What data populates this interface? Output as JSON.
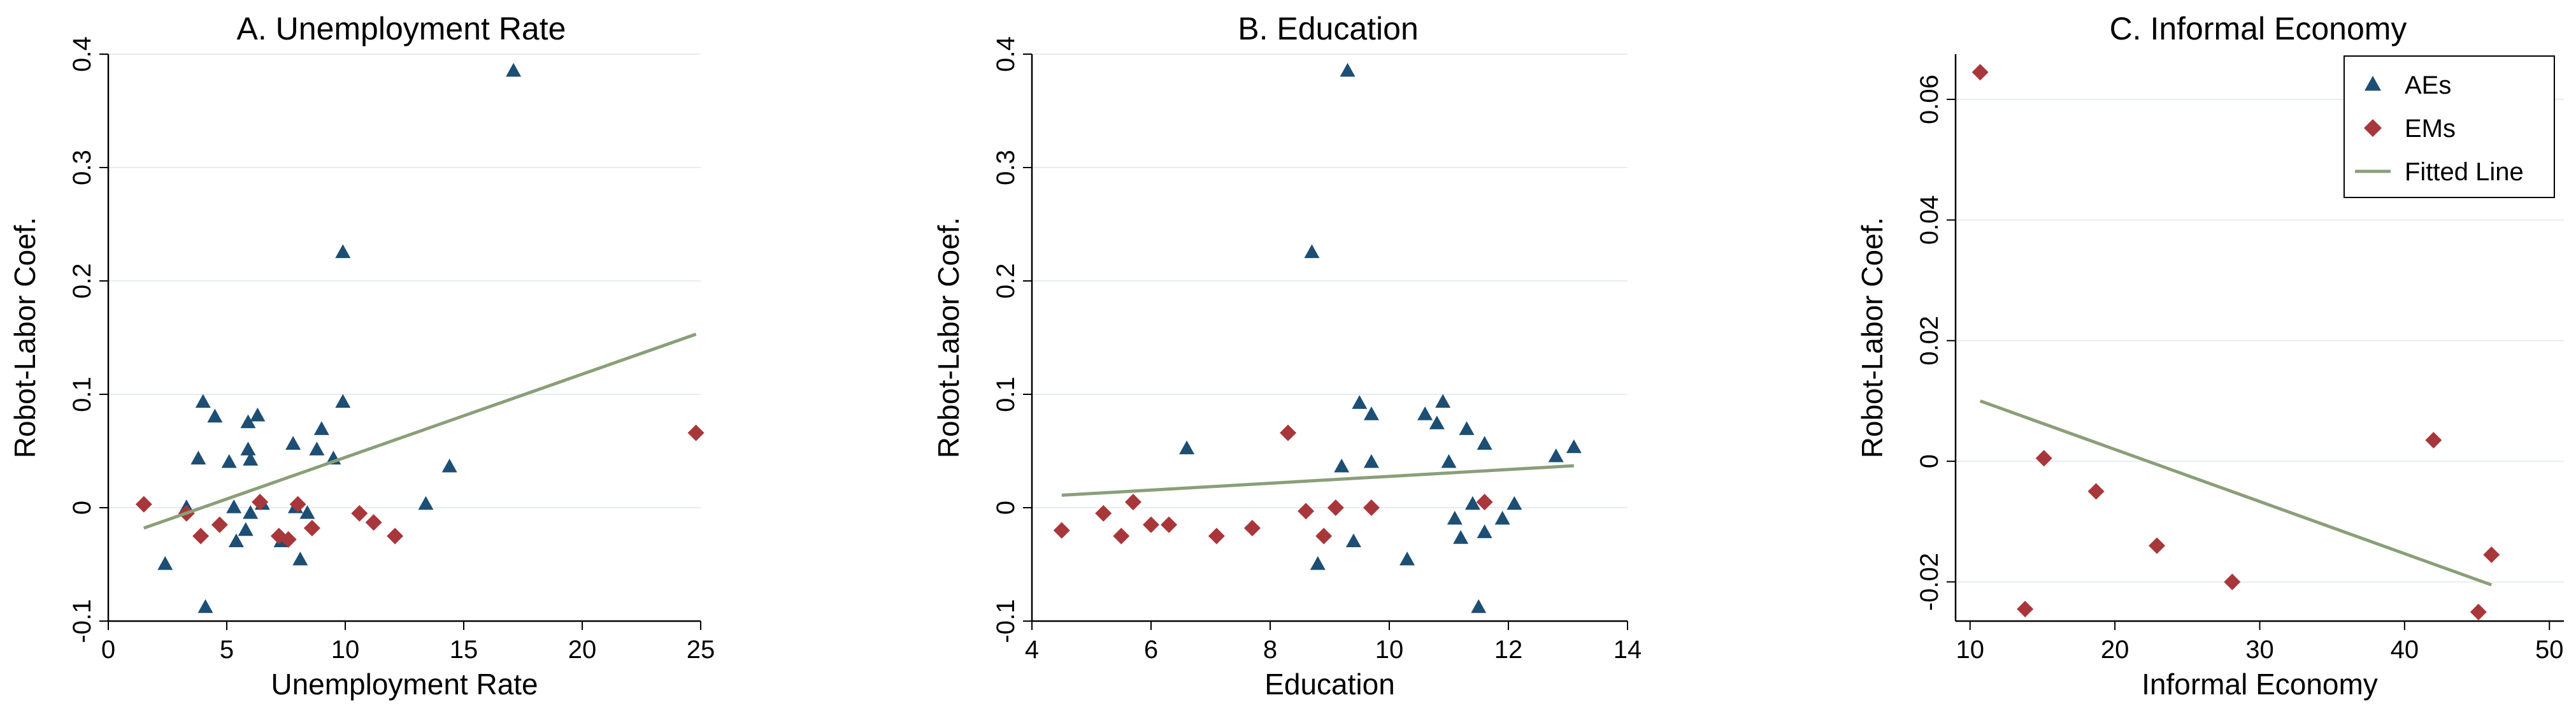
{
  "chart_data": [
    {
      "type": "scatter",
      "title": "A. Unemployment Rate",
      "xlabel": "Unemployment Rate",
      "ylabel": "Robot-Labor Coef.",
      "xlim": [
        0,
        25
      ],
      "ylim": [
        -0.1,
        0.4
      ],
      "xticks": [
        "0",
        "5",
        "10",
        "15",
        "20",
        "25"
      ],
      "yticks": [
        "-0.1",
        "0",
        "0.1",
        "0.2",
        "0.3",
        "0.4"
      ],
      "grid": true,
      "series": [
        {
          "name": "AEs",
          "color": "#1d4e74",
          "marker": "triangle",
          "points": [
            [
              2.4,
              -0.05
            ],
            [
              3.3,
              0.0
            ],
            [
              3.8,
              0.043
            ],
            [
              4.0,
              0.093
            ],
            [
              4.1,
              -0.088
            ],
            [
              4.5,
              0.08
            ],
            [
              5.1,
              0.04
            ],
            [
              5.3,
              0.0
            ],
            [
              5.4,
              -0.03
            ],
            [
              5.8,
              -0.02
            ],
            [
              5.9,
              0.051
            ],
            [
              6.0,
              0.042
            ],
            [
              5.9,
              0.075
            ],
            [
              6.3,
              0.081
            ],
            [
              6.0,
              -0.005
            ],
            [
              6.5,
              0.003
            ],
            [
              7.3,
              -0.03
            ],
            [
              7.8,
              0.056
            ],
            [
              7.9,
              0.0
            ],
            [
              8.1,
              -0.046
            ],
            [
              8.4,
              -0.005
            ],
            [
              8.8,
              0.051
            ],
            [
              9.0,
              0.069
            ],
            [
              9.5,
              0.043
            ],
            [
              9.9,
              0.093
            ],
            [
              9.9,
              0.225
            ],
            [
              13.4,
              0.003
            ],
            [
              14.4,
              0.036
            ],
            [
              17.1,
              0.385
            ]
          ]
        },
        {
          "name": "EMs",
          "color": "#a8373b",
          "marker": "diamond",
          "points": [
            [
              1.5,
              0.003
            ],
            [
              3.3,
              -0.005
            ],
            [
              3.9,
              -0.025
            ],
            [
              4.7,
              -0.015
            ],
            [
              6.4,
              0.005
            ],
            [
              7.2,
              -0.025
            ],
            [
              7.6,
              -0.028
            ],
            [
              8.0,
              0.003
            ],
            [
              8.6,
              -0.018
            ],
            [
              10.6,
              -0.005
            ],
            [
              11.2,
              -0.013
            ],
            [
              12.1,
              -0.025
            ],
            [
              24.8,
              0.066
            ]
          ]
        },
        {
          "name": "Fitted Line",
          "color": "#8a9f78",
          "type": "line",
          "points": [
            [
              1.5,
              -0.018
            ],
            [
              24.8,
              0.153
            ]
          ]
        }
      ]
    },
    {
      "type": "scatter",
      "title": "B. Education",
      "xlabel": "Education",
      "ylabel": "Robot-Labor Coef.",
      "xlim": [
        4,
        14
      ],
      "ylim": [
        -0.1,
        0.4
      ],
      "xticks": [
        "4",
        "6",
        "8",
        "10",
        "12",
        "14"
      ],
      "yticks": [
        "-0.1",
        "0",
        "0.1",
        "0.2",
        "0.3",
        "0.4"
      ],
      "grid": true,
      "series": [
        {
          "name": "AEs",
          "color": "#1d4e74",
          "marker": "triangle",
          "points": [
            [
              6.6,
              0.052
            ],
            [
              8.7,
              0.225
            ],
            [
              8.8,
              -0.05
            ],
            [
              9.2,
              0.036
            ],
            [
              9.3,
              0.385
            ],
            [
              9.4,
              -0.03
            ],
            [
              9.5,
              0.092
            ],
            [
              9.7,
              0.082
            ],
            [
              9.7,
              0.04
            ],
            [
              10.3,
              -0.046
            ],
            [
              10.6,
              0.082
            ],
            [
              10.8,
              0.074
            ],
            [
              10.9,
              0.093
            ],
            [
              11.0,
              0.04
            ],
            [
              11.1,
              -0.01
            ],
            [
              11.2,
              -0.027
            ],
            [
              11.3,
              0.069
            ],
            [
              11.4,
              0.003
            ],
            [
              11.5,
              -0.088
            ],
            [
              11.6,
              0.056
            ],
            [
              11.6,
              -0.022
            ],
            [
              11.9,
              -0.01
            ],
            [
              12.1,
              0.003
            ],
            [
              12.8,
              0.045
            ],
            [
              13.1,
              0.053
            ]
          ]
        },
        {
          "name": "EMs",
          "color": "#a8373b",
          "marker": "diamond",
          "points": [
            [
              4.5,
              -0.02
            ],
            [
              5.2,
              -0.005
            ],
            [
              5.5,
              -0.025
            ],
            [
              5.7,
              0.005
            ],
            [
              6.0,
              -0.015
            ],
            [
              6.3,
              -0.015
            ],
            [
              7.1,
              -0.025
            ],
            [
              7.7,
              -0.018
            ],
            [
              8.3,
              0.066
            ],
            [
              8.6,
              -0.003
            ],
            [
              8.9,
              -0.025
            ],
            [
              9.1,
              0.0
            ],
            [
              9.7,
              0.0
            ],
            [
              11.6,
              0.005
            ]
          ]
        },
        {
          "name": "Fitted Line",
          "color": "#8a9f78",
          "type": "line",
          "points": [
            [
              4.5,
              0.011
            ],
            [
              13.1,
              0.037
            ]
          ]
        }
      ]
    },
    {
      "type": "scatter",
      "title": "C. Informal Economy",
      "xlabel": "Informal Economy",
      "ylabel": "Robot-Labor Coef.",
      "xlim": [
        9,
        51
      ],
      "ylim": [
        -0.0265,
        0.0675
      ],
      "xticks": [
        "10",
        "20",
        "30",
        "40",
        "50"
      ],
      "yticks": [
        "-0.02",
        "0",
        "0.02",
        "0.04",
        "0.06"
      ],
      "grid": true,
      "legend": "top-right",
      "series": [
        {
          "name": "AEs",
          "color": "#1d4e74",
          "marker": "triangle",
          "points": []
        },
        {
          "name": "EMs",
          "color": "#a8373b",
          "marker": "diamond",
          "points": [
            [
              10.7,
              0.0645
            ],
            [
              13.8,
              -0.0245
            ],
            [
              15.1,
              0.0005
            ],
            [
              18.7,
              -0.005
            ],
            [
              22.9,
              -0.014
            ],
            [
              28.1,
              -0.02
            ],
            [
              42.0,
              0.0035
            ],
            [
              45.1,
              -0.025
            ],
            [
              46.0,
              -0.0155
            ]
          ]
        },
        {
          "name": "Fitted Line",
          "color": "#8a9f78",
          "type": "line",
          "points": [
            [
              10.7,
              0.01
            ],
            [
              46.0,
              -0.0205
            ]
          ]
        }
      ]
    }
  ]
}
